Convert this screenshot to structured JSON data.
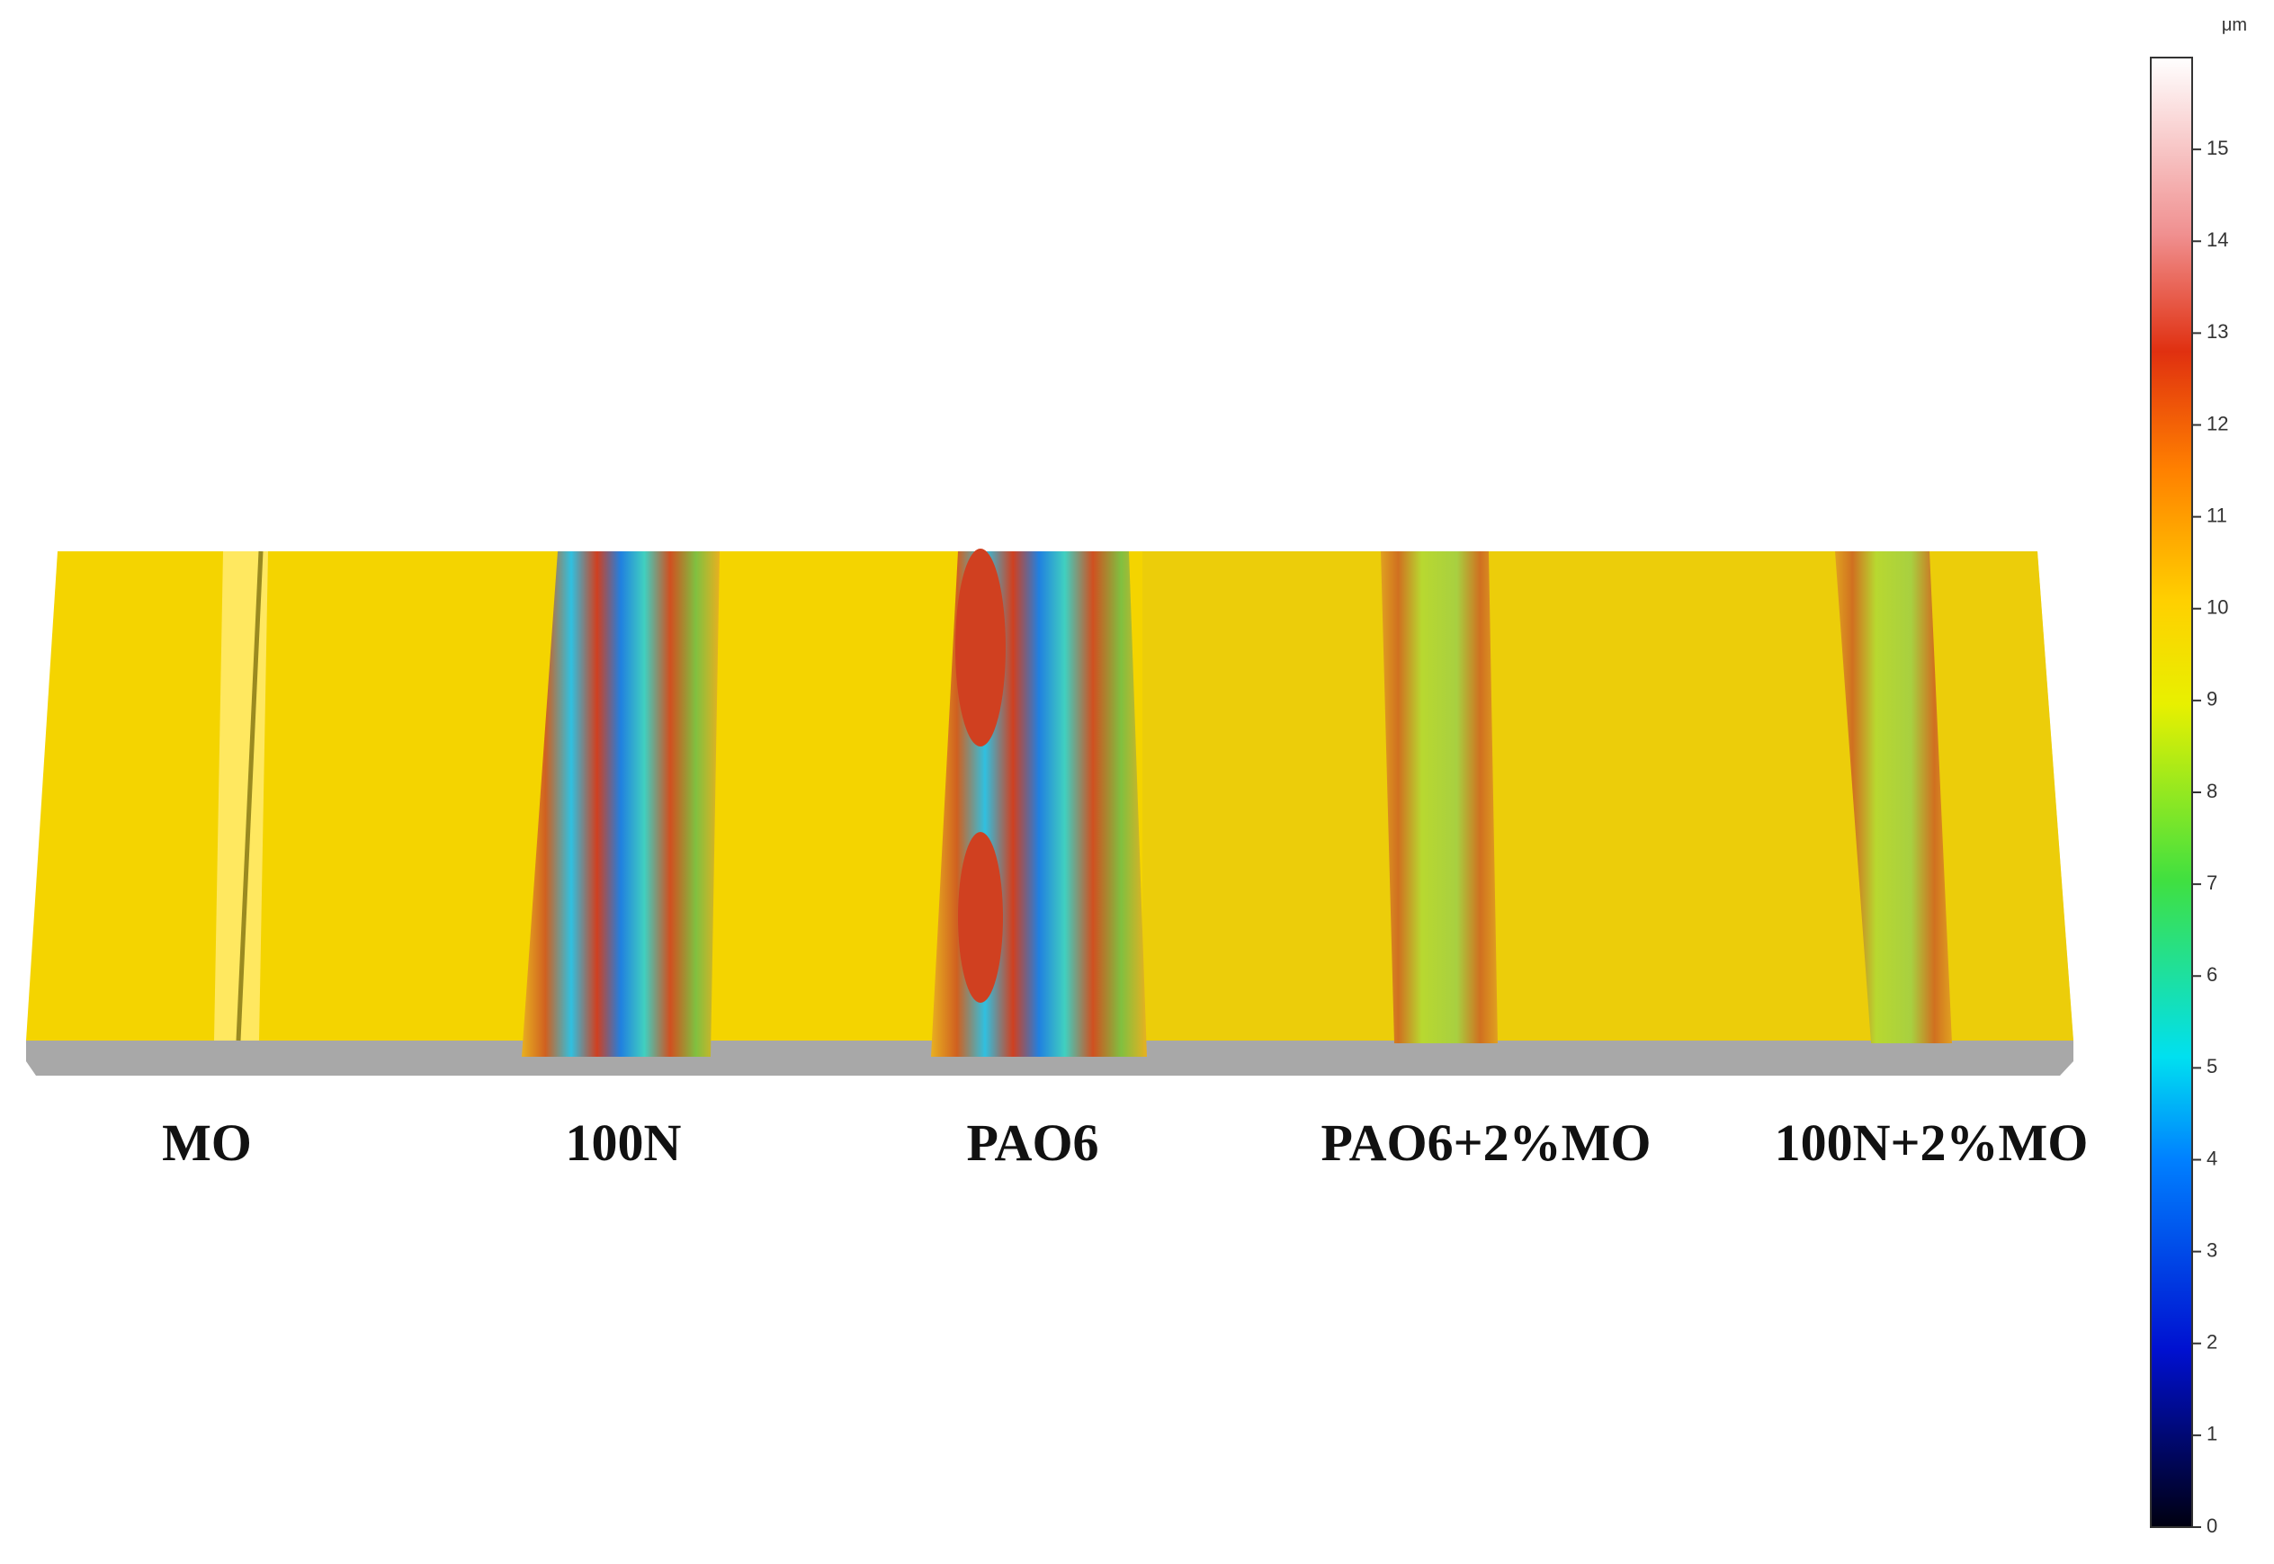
{
  "labels": [
    "MO",
    "100N",
    "PAO6",
    "PAO6+2%MO",
    "100N+2%MO"
  ],
  "colorbar": {
    "unit": "μm",
    "lim": [
      0,
      16
    ],
    "ticks": [
      0,
      1,
      2,
      3,
      4,
      5,
      6,
      7,
      8,
      9,
      10,
      11,
      12,
      13,
      14,
      15
    ]
  }
}
